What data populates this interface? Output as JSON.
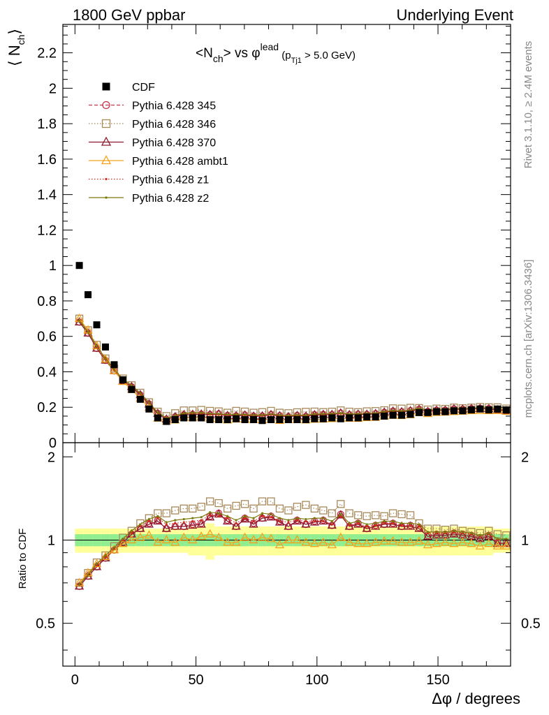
{
  "header": {
    "left": "1800 GeV ppbar",
    "right": "Underlying Event"
  },
  "side_text": {
    "upper": "Rivet 3.1.10, ≥ 2.4M events",
    "lower": "mcplots.cern.ch [arXiv:1306.3436]"
  },
  "chart_data": {
    "type": "scatter",
    "title": {
      "main": "<N",
      "sub1": "ch",
      "mid": "> vs φ",
      "sup": "lead",
      "cut_open": " (p",
      "sub2": "Tj1",
      "cut_close": " > 5.0 GeV)"
    },
    "ylabel": {
      "open": "⟨ N",
      "sub": "ch",
      "close": "⟩"
    },
    "xlabel": "Δφ / degrees",
    "ratio_ylabel": "Ratio to CDF",
    "xlim": [
      -5,
      180
    ],
    "ylim": [
      0,
      2.36
    ],
    "ratio_ylim": [
      0.35,
      2.25
    ],
    "ratio_scale": "log",
    "x_ticks": [
      {
        "v": 0,
        "label": "0"
      },
      {
        "v": 50,
        "label": "50"
      },
      {
        "v": 100,
        "label": "100"
      },
      {
        "v": 150,
        "label": "150"
      }
    ],
    "y_ticks": [
      {
        "v": 0,
        "label": "0"
      },
      {
        "v": 0.2,
        "label": "0.2"
      },
      {
        "v": 0.4,
        "label": "0.4"
      },
      {
        "v": 0.6,
        "label": "0.6"
      },
      {
        "v": 0.8,
        "label": "0.8"
      },
      {
        "v": 1.0,
        "label": "1"
      },
      {
        "v": 1.2,
        "label": "1.2"
      },
      {
        "v": 1.4,
        "label": "1.4"
      },
      {
        "v": 1.6,
        "label": "1.6"
      },
      {
        "v": 1.8,
        "label": "1.8"
      },
      {
        "v": 2.0,
        "label": "2"
      },
      {
        "v": 2.2,
        "label": "2.2"
      }
    ],
    "ratio_ticks": [
      {
        "v": 0.5,
        "label": "0.5"
      },
      {
        "v": 1,
        "label": "1"
      },
      {
        "v": 2,
        "label": "2"
      }
    ],
    "x": [
      1.8,
      5.4,
      9,
      12.6,
      16.2,
      19.8,
      23.4,
      27,
      30.6,
      34.2,
      37.8,
      41.4,
      45,
      48.6,
      52.2,
      55.8,
      59.4,
      63,
      66.6,
      70.2,
      73.8,
      77.4,
      81,
      84.6,
      88.2,
      91.8,
      95.4,
      99,
      102.6,
      106.2,
      109.8,
      113.4,
      117,
      120.6,
      124.2,
      127.8,
      131.4,
      135,
      138.6,
      142.2,
      145.8,
      149.4,
      153,
      156.6,
      160.2,
      163.8,
      167.4,
      171,
      174.6,
      178.2
    ],
    "legend_position": "top-left",
    "series": [
      {
        "name": "CDF",
        "color": "#000000",
        "marker": "square-filled",
        "line": "none",
        "values": [
          1.0,
          0.835,
          0.665,
          0.54,
          0.44,
          0.355,
          0.3,
          0.245,
          0.19,
          0.14,
          0.12,
          0.13,
          0.14,
          0.14,
          0.14,
          0.13,
          0.13,
          0.13,
          0.135,
          0.13,
          0.13,
          0.125,
          0.13,
          0.13,
          0.13,
          0.13,
          0.13,
          0.135,
          0.135,
          0.14,
          0.135,
          0.14,
          0.14,
          0.145,
          0.145,
          0.15,
          0.155,
          0.155,
          0.16,
          0.17,
          0.17,
          0.175,
          0.175,
          0.18,
          0.18,
          0.185,
          0.19,
          0.185,
          0.19,
          0.185
        ],
        "band_inner": [
          0.05,
          0.05,
          0.05,
          0.05,
          0.05,
          0.05,
          0.05,
          0.05,
          0.05,
          0.05,
          0.05,
          0.05,
          0.05,
          0.05,
          0.05,
          0.05,
          0.05,
          0.05,
          0.05,
          0.05,
          0.05,
          0.05,
          0.05,
          0.05,
          0.05,
          0.05,
          0.05,
          0.05,
          0.05,
          0.05,
          0.05,
          0.05,
          0.05,
          0.05,
          0.05,
          0.05,
          0.05,
          0.05,
          0.05,
          0.05,
          0.05,
          0.05,
          0.05,
          0.05,
          0.05,
          0.05,
          0.05,
          0.05,
          0.05,
          0.05
        ],
        "band_outer": [
          0.1,
          0.1,
          0.1,
          0.1,
          0.1,
          0.1,
          0.1,
          0.1,
          0.1,
          0.1,
          0.1,
          0.1,
          0.1,
          0.12,
          0.12,
          0.15,
          0.12,
          0.12,
          0.12,
          0.12,
          0.12,
          0.12,
          0.12,
          0.12,
          0.12,
          0.12,
          0.12,
          0.12,
          0.12,
          0.12,
          0.12,
          0.12,
          0.12,
          0.12,
          0.12,
          0.12,
          0.12,
          0.12,
          0.12,
          0.12,
          0.12,
          0.12,
          0.12,
          0.12,
          0.12,
          0.12,
          0.12,
          0.12,
          0.1,
          0.1
        ]
      },
      {
        "name": "Pythia 6.428 345",
        "color": "#c8334a",
        "marker": "circle-open",
        "line": "dashed",
        "ratio": [
          0.68,
          0.74,
          0.8,
          0.86,
          0.92,
          0.98,
          1.05,
          1.1,
          1.15,
          1.18,
          1.1,
          1.12,
          1.12,
          1.14,
          1.15,
          1.22,
          1.25,
          1.18,
          1.12,
          1.2,
          1.15,
          1.2,
          1.22,
          1.17,
          1.12,
          1.18,
          1.14,
          1.17,
          1.18,
          1.13,
          1.24,
          1.12,
          1.15,
          1.1,
          1.13,
          1.14,
          1.15,
          1.12,
          1.13,
          1.11,
          1.04,
          1.05,
          1.05,
          1.06,
          1.05,
          1.04,
          1.02,
          1.04,
          0.98,
          0.98
        ]
      },
      {
        "name": "Pythia 6.428 346",
        "color": "#a8895a",
        "marker": "square-open",
        "line": "dotted",
        "ratio": [
          0.7,
          0.76,
          0.83,
          0.88,
          0.95,
          1.02,
          1.08,
          1.15,
          1.2,
          1.25,
          1.25,
          1.28,
          1.3,
          1.3,
          1.32,
          1.38,
          1.36,
          1.3,
          1.33,
          1.35,
          1.3,
          1.38,
          1.38,
          1.3,
          1.28,
          1.32,
          1.34,
          1.3,
          1.28,
          1.25,
          1.35,
          1.25,
          1.23,
          1.22,
          1.23,
          1.22,
          1.25,
          1.24,
          1.23,
          1.15,
          1.1,
          1.1,
          1.09,
          1.1,
          1.08,
          1.07,
          1.06,
          1.08,
          1.05,
          1.04
        ]
      },
      {
        "name": "Pythia 6.428 370",
        "color": "#8b1a2e",
        "marker": "triangle-open",
        "line": "solid",
        "ratio": [
          0.68,
          0.74,
          0.8,
          0.86,
          0.92,
          0.98,
          1.05,
          1.1,
          1.14,
          1.17,
          1.1,
          1.12,
          1.12,
          1.13,
          1.14,
          1.21,
          1.24,
          1.17,
          1.12,
          1.19,
          1.14,
          1.2,
          1.21,
          1.16,
          1.12,
          1.17,
          1.14,
          1.16,
          1.17,
          1.13,
          1.23,
          1.12,
          1.14,
          1.1,
          1.12,
          1.14,
          1.14,
          1.12,
          1.12,
          1.1,
          1.03,
          1.04,
          1.04,
          1.05,
          1.04,
          1.03,
          1.01,
          1.03,
          0.97,
          0.97
        ]
      },
      {
        "name": "Pythia 6.428 ambt1",
        "color": "#f5a21b",
        "marker": "triangle-open",
        "line": "solid",
        "ratio": [
          0.7,
          0.76,
          0.82,
          0.87,
          0.92,
          0.97,
          1.0,
          1.02,
          1.04,
          0.98,
          1.0,
          0.98,
          1.02,
          1.0,
          1.03,
          1.05,
          1.02,
          0.98,
          0.98,
          1.02,
          1.0,
          1.02,
          1.01,
          0.96,
          1.0,
          1.0,
          0.98,
          0.97,
          0.98,
          0.96,
          1.02,
          0.98,
          0.97,
          0.97,
          0.98,
          0.99,
          0.99,
          0.98,
          0.98,
          0.99,
          0.96,
          0.97,
          0.98,
          0.97,
          0.98,
          0.97,
          0.95,
          0.97,
          0.95,
          0.95
        ]
      },
      {
        "name": "Pythia 6.428 z1",
        "color": "#d42a1a",
        "marker": "dot",
        "line": "dotted",
        "ratio": [
          0.69,
          0.75,
          0.81,
          0.87,
          0.93,
          1.0,
          1.06,
          1.12,
          1.17,
          1.2,
          1.14,
          1.15,
          1.16,
          1.17,
          1.18,
          1.23,
          1.22,
          1.2,
          1.15,
          1.2,
          1.17,
          1.22,
          1.21,
          1.17,
          1.16,
          1.18,
          1.17,
          1.17,
          1.17,
          1.14,
          1.22,
          1.13,
          1.15,
          1.12,
          1.13,
          1.15,
          1.15,
          1.13,
          1.13,
          1.12,
          1.06,
          1.06,
          1.06,
          1.07,
          1.06,
          1.05,
          1.03,
          1.05,
          1.0,
          1.0
        ]
      },
      {
        "name": "Pythia 6.428 z2",
        "color": "#7a7a0a",
        "marker": "dot",
        "line": "solid",
        "ratio": [
          0.69,
          0.75,
          0.82,
          0.88,
          0.94,
          1.01,
          1.08,
          1.14,
          1.19,
          1.22,
          1.16,
          1.18,
          1.19,
          1.2,
          1.21,
          1.26,
          1.25,
          1.22,
          1.18,
          1.22,
          1.2,
          1.25,
          1.24,
          1.2,
          1.18,
          1.2,
          1.19,
          1.2,
          1.2,
          1.17,
          1.24,
          1.15,
          1.17,
          1.14,
          1.15,
          1.17,
          1.17,
          1.15,
          1.15,
          1.14,
          1.07,
          1.07,
          1.07,
          1.08,
          1.07,
          1.06,
          1.04,
          1.06,
          1.01,
          1.01
        ]
      }
    ]
  }
}
